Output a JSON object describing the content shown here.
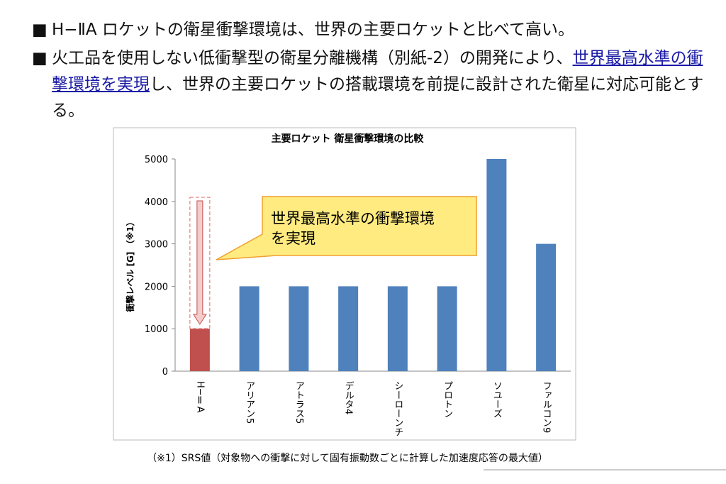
{
  "bullets": [
    {
      "text": "H−ⅡA ロケットの衛星衝撃環境は、世界の主要ロケットと比べて高い。"
    },
    {
      "before": "火工品を使用しない低衝撃型の衛星分離機構（別紙-2）の開発により、",
      "link": "世界最高水準の衝撃環境を実現",
      "after": "し、世界の主要ロケットの搭載環境を前提に設計された衛星に対応可能とする。"
    }
  ],
  "chart_data": {
    "type": "bar",
    "title": "主要ロケット 衛星衝撃環境の比較",
    "y_label": "衝撃レベル [G] （※1）",
    "categories": [
      "H−ⅡA",
      "アリアン5",
      "アトラス5",
      "デルタ4",
      "シーローンチ",
      "プロトン",
      "ソユーズ",
      "ファルコン9"
    ],
    "values": [
      1000,
      2000,
      2000,
      2000,
      2000,
      2000,
      5000,
      3000
    ],
    "colors": [
      "#c0504d",
      "#4f81bd",
      "#4f81bd",
      "#4f81bd",
      "#4f81bd",
      "#4f81bd",
      "#4f81bd",
      "#4f81bd"
    ],
    "ylim": [
      0,
      5000
    ],
    "yticks": [
      0,
      1000,
      2000,
      3000,
      4000,
      5000
    ],
    "grid": false,
    "annotation": [
      "世界最高水準の衝撃環境",
      "を実現"
    ]
  },
  "footnote": "（※1）SRS値（対象物への衝撃に対して固有振動数ごとに計算した加速度応答の最大値）"
}
